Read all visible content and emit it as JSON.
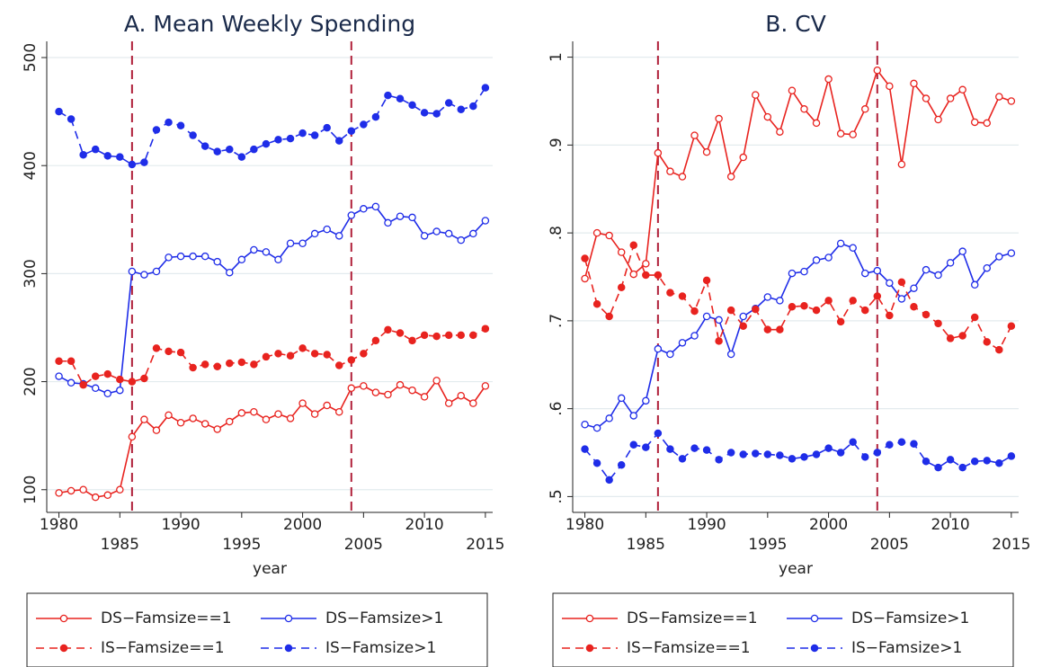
{
  "chart_data": [
    {
      "type": "line",
      "title": "A. Mean Weekly Spending",
      "x_label": "year",
      "x": [
        1980,
        1981,
        1982,
        1983,
        1984,
        1985,
        1986,
        1987,
        1988,
        1989,
        1990,
        1991,
        1992,
        1993,
        1994,
        1995,
        1996,
        1997,
        1998,
        1999,
        2000,
        2001,
        2002,
        2003,
        2004,
        2005,
        2006,
        2007,
        2008,
        2009,
        2010,
        2011,
        2012,
        2013,
        2014,
        2015
      ],
      "xlim": [
        1979,
        2015.6
      ],
      "xticks": [
        1980,
        1985,
        1990,
        1995,
        2000,
        2005,
        2010,
        2015
      ],
      "ylim": [
        79,
        515
      ],
      "yticks": [
        100,
        200,
        300,
        400,
        500
      ],
      "grid": true,
      "vlines": [
        1986,
        2004
      ],
      "series": [
        {
          "name": "DS−Famsize==1",
          "color": "#e8231f",
          "dashed": false,
          "filled": false,
          "values": [
            97,
            99,
            100,
            93,
            95,
            100,
            149,
            165,
            155,
            169,
            162,
            166,
            161,
            156,
            163,
            171,
            172,
            165,
            170,
            166,
            180,
            170,
            178,
            172,
            194,
            196,
            190,
            188,
            197,
            192,
            186,
            201,
            180,
            187,
            180,
            196
          ]
        },
        {
          "name": "DS−Famsize>1",
          "color": "#1f2de8",
          "dashed": false,
          "filled": false,
          "values": [
            205,
            199,
            198,
            194,
            189,
            192,
            302,
            299,
            302,
            315,
            316,
            316,
            316,
            311,
            301,
            313,
            322,
            320,
            313,
            328,
            328,
            337,
            341,
            335,
            354,
            360,
            362,
            347,
            353,
            352,
            335,
            339,
            337,
            331,
            337,
            349
          ]
        },
        {
          "name": "IS−Famsize==1",
          "color": "#e8231f",
          "dashed": true,
          "filled": true,
          "values": [
            219,
            219,
            197,
            205,
            207,
            202,
            200,
            203,
            231,
            228,
            227,
            213,
            216,
            214,
            217,
            218,
            216,
            223,
            226,
            224,
            231,
            226,
            225,
            215,
            220,
            226,
            238,
            248,
            245,
            238,
            243,
            242,
            243,
            243,
            243,
            249
          ]
        },
        {
          "name": "IS−Famsize>1",
          "color": "#1f2de8",
          "dashed": true,
          "filled": true,
          "values": [
            450,
            443,
            410,
            415,
            409,
            408,
            401,
            403,
            433,
            440,
            437,
            428,
            418,
            413,
            415,
            408,
            415,
            420,
            424,
            425,
            430,
            428,
            435,
            423,
            432,
            438,
            445,
            465,
            462,
            456,
            449,
            448,
            458,
            452,
            455,
            472
          ]
        }
      ]
    },
    {
      "type": "line",
      "title": "B. CV",
      "x_label": "year",
      "x": [
        1980,
        1981,
        1982,
        1983,
        1984,
        1985,
        1986,
        1987,
        1988,
        1989,
        1990,
        1991,
        1992,
        1993,
        1994,
        1995,
        1996,
        1997,
        1998,
        1999,
        2000,
        2001,
        2002,
        2003,
        2004,
        2005,
        2006,
        2007,
        2008,
        2009,
        2010,
        2011,
        2012,
        2013,
        2014,
        2015
      ],
      "xlim": [
        1979,
        2015.6
      ],
      "xticks": [
        1980,
        1985,
        1990,
        1995,
        2000,
        2005,
        2010,
        2015
      ],
      "ylim": [
        0.482,
        1.018
      ],
      "yticks": [
        {
          "value": 0.5,
          "label": ".5"
        },
        {
          "value": 0.6,
          "label": ".6"
        },
        {
          "value": 0.7,
          "label": ".7"
        },
        {
          "value": 0.8,
          "label": ".8"
        },
        {
          "value": 0.9,
          "label": ".9"
        },
        1
      ],
      "grid": true,
      "vlines": [
        1986,
        2004
      ],
      "series": [
        {
          "name": "DS−Famsize==1",
          "color": "#e8231f",
          "dashed": false,
          "filled": false,
          "values": [
            0.748,
            0.8,
            0.797,
            0.778,
            0.753,
            0.765,
            0.891,
            0.87,
            0.864,
            0.911,
            0.892,
            0.93,
            0.864,
            0.886,
            0.957,
            0.932,
            0.915,
            0.962,
            0.941,
            0.925,
            0.975,
            0.913,
            0.912,
            0.941,
            0.985,
            0.967,
            0.878,
            0.97,
            0.953,
            0.929,
            0.953,
            0.963,
            0.926,
            0.925,
            0.955,
            0.95
          ]
        },
        {
          "name": "DS−Famsize>1",
          "color": "#1f2de8",
          "dashed": false,
          "filled": false,
          "values": [
            0.582,
            0.578,
            0.589,
            0.612,
            0.592,
            0.609,
            0.668,
            0.662,
            0.675,
            0.683,
            0.705,
            0.701,
            0.662,
            0.705,
            0.714,
            0.727,
            0.723,
            0.754,
            0.756,
            0.769,
            0.772,
            0.788,
            0.783,
            0.754,
            0.757,
            0.743,
            0.725,
            0.737,
            0.758,
            0.752,
            0.766,
            0.779,
            0.741,
            0.76,
            0.773,
            0.777
          ]
        },
        {
          "name": "IS−Famsize==1",
          "color": "#e8231f",
          "dashed": true,
          "filled": true,
          "values": [
            0.771,
            0.719,
            0.705,
            0.738,
            0.786,
            0.752,
            0.752,
            0.732,
            0.728,
            0.711,
            0.746,
            0.677,
            0.712,
            0.694,
            0.713,
            0.69,
            0.69,
            0.716,
            0.717,
            0.712,
            0.723,
            0.699,
            0.723,
            0.712,
            0.728,
            0.706,
            0.744,
            0.716,
            0.707,
            0.697,
            0.68,
            0.683,
            0.704,
            0.676,
            0.667,
            0.694
          ]
        },
        {
          "name": "IS−Famsize>1",
          "color": "#1f2de8",
          "dashed": true,
          "filled": true,
          "values": [
            0.554,
            0.538,
            0.519,
            0.536,
            0.559,
            0.556,
            0.572,
            0.554,
            0.543,
            0.555,
            0.553,
            0.542,
            0.55,
            0.548,
            0.549,
            0.548,
            0.547,
            0.543,
            0.545,
            0.548,
            0.555,
            0.55,
            0.562,
            0.545,
            0.55,
            0.559,
            0.562,
            0.56,
            0.54,
            0.533,
            0.542,
            0.533,
            0.54,
            0.541,
            0.538,
            0.546
          ]
        }
      ]
    }
  ]
}
